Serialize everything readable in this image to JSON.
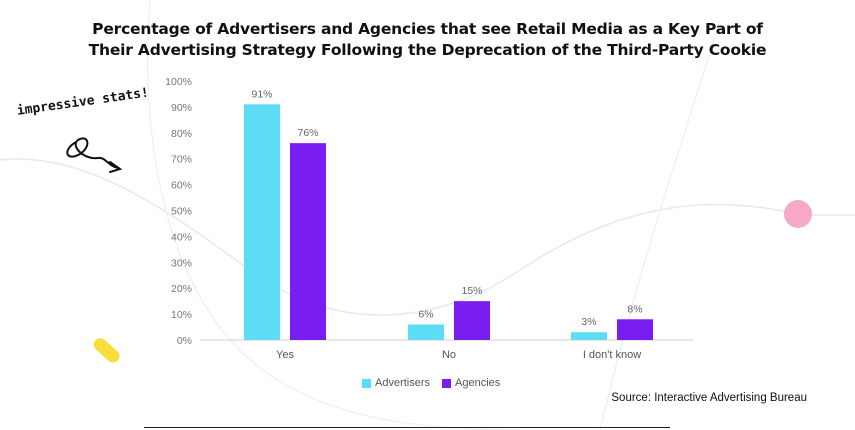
{
  "header": {
    "title_line1": "Percentage of Advertisers and Agencies that see Retail Media as a Key Part of",
    "title_line2": "Their Advertising Strategy Following the Deprecation of the Third-Party Cookie"
  },
  "annotation": {
    "text": "impressive stats!"
  },
  "source": {
    "text": "Source: Interactive Advertising Bureau"
  },
  "colors": {
    "advertisers": "#5ddcf5",
    "agencies": "#7a1df0",
    "pink_dot": "#f7a8c8",
    "yellow_pill": "#f7de3a"
  },
  "chart_data": {
    "type": "bar",
    "categories": [
      "Yes",
      "No",
      "I don't know"
    ],
    "series": [
      {
        "name": "Advertisers",
        "values": [
          91,
          6,
          3
        ],
        "labels": [
          "91%",
          "6%",
          "3%"
        ]
      },
      {
        "name": "Agencies",
        "values": [
          76,
          15,
          8
        ],
        "labels": [
          "76%",
          "15%",
          "8%"
        ]
      }
    ],
    "ylim": [
      0,
      100
    ],
    "yticks": [
      "0%",
      "10%",
      "20%",
      "30%",
      "40%",
      "50%",
      "60%",
      "70%",
      "80%",
      "90%",
      "100%"
    ],
    "grid": false,
    "legend": "bottom"
  }
}
